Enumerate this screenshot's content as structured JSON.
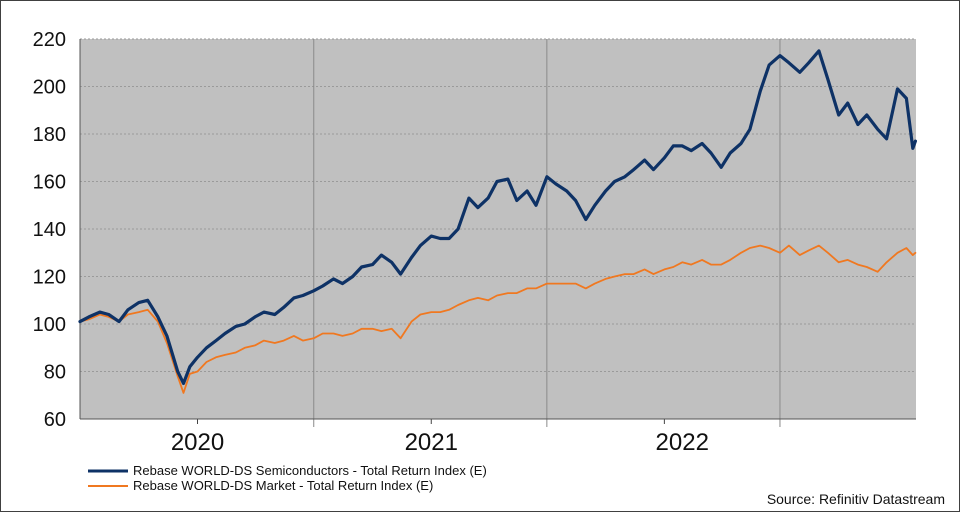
{
  "chart_data": {
    "type": "line",
    "title": "",
    "xlabel": "",
    "ylabel": "",
    "ylim": [
      60,
      220
    ],
    "yticks": [
      60,
      80,
      100,
      120,
      140,
      160,
      180,
      200,
      220
    ],
    "xticks": [
      "2020",
      "2021",
      "2022"
    ],
    "grid": true,
    "legend_position": "bottom-left",
    "source": "Source: Refinitiv Datastream",
    "colors": {
      "plot_background": "#c0c0c0",
      "semis": "#0e3266",
      "market": "#f07820"
    },
    "series": [
      {
        "name": "Rebase WORLD-DS Semiconductors - Total Return Index (E)",
        "color": "#0e3266",
        "points": [
          [
            "2019-08-01",
            101
          ],
          [
            "2019-08-15",
            103
          ],
          [
            "2019-09-01",
            105
          ],
          [
            "2019-09-15",
            104
          ],
          [
            "2019-10-01",
            101
          ],
          [
            "2019-10-15",
            106
          ],
          [
            "2019-11-01",
            109
          ],
          [
            "2019-11-15",
            110
          ],
          [
            "2019-12-01",
            103
          ],
          [
            "2019-12-15",
            95
          ],
          [
            "2020-01-01",
            80
          ],
          [
            "2020-01-10",
            75
          ],
          [
            "2020-01-20",
            82
          ],
          [
            "2020-02-01",
            86
          ],
          [
            "2020-02-15",
            90
          ],
          [
            "2020-03-01",
            93
          ],
          [
            "2020-03-15",
            96
          ],
          [
            "2020-04-01",
            99
          ],
          [
            "2020-04-15",
            100
          ],
          [
            "2020-05-01",
            103
          ],
          [
            "2020-05-15",
            105
          ],
          [
            "2020-06-01",
            104
          ],
          [
            "2020-06-15",
            107
          ],
          [
            "2020-07-01",
            111
          ],
          [
            "2020-07-15",
            112
          ],
          [
            "2020-08-01",
            114
          ],
          [
            "2020-08-15",
            116
          ],
          [
            "2020-09-01",
            119
          ],
          [
            "2020-09-15",
            117
          ],
          [
            "2020-10-01",
            120
          ],
          [
            "2020-10-15",
            124
          ],
          [
            "2020-11-01",
            125
          ],
          [
            "2020-11-15",
            129
          ],
          [
            "2020-12-01",
            126
          ],
          [
            "2020-12-15",
            121
          ],
          [
            "2021-01-01",
            128
          ],
          [
            "2021-01-15",
            133
          ],
          [
            "2021-02-01",
            137
          ],
          [
            "2021-02-15",
            136
          ],
          [
            "2021-03-01",
            136
          ],
          [
            "2021-03-15",
            140
          ],
          [
            "2021-04-01",
            153
          ],
          [
            "2021-04-15",
            149
          ],
          [
            "2021-05-01",
            153
          ],
          [
            "2021-05-15",
            160
          ],
          [
            "2021-06-01",
            161
          ],
          [
            "2021-06-15",
            152
          ],
          [
            "2021-07-01",
            156
          ],
          [
            "2021-07-15",
            150
          ],
          [
            "2021-08-01",
            162
          ],
          [
            "2021-08-15",
            159
          ],
          [
            "2021-09-01",
            156
          ],
          [
            "2021-09-15",
            152
          ],
          [
            "2021-10-01",
            144
          ],
          [
            "2021-10-15",
            150
          ],
          [
            "2021-11-01",
            156
          ],
          [
            "2021-11-15",
            160
          ],
          [
            "2021-12-01",
            162
          ],
          [
            "2021-12-15",
            165
          ],
          [
            "2022-01-01",
            169
          ],
          [
            "2022-01-15",
            165
          ],
          [
            "2022-02-01",
            170
          ],
          [
            "2022-02-15",
            175
          ],
          [
            "2022-03-01",
            175
          ],
          [
            "2022-03-15",
            173
          ],
          [
            "2022-04-01",
            176
          ],
          [
            "2022-04-15",
            172
          ],
          [
            "2022-05-01",
            166
          ],
          [
            "2022-05-15",
            172
          ],
          [
            "2022-06-01",
            176
          ],
          [
            "2022-06-15",
            182
          ],
          [
            "2022-07-01",
            198
          ],
          [
            "2022-07-15",
            209
          ],
          [
            "2022-08-01",
            213
          ],
          [
            "2022-08-15",
            210
          ],
          [
            "2022-09-01",
            206
          ],
          [
            "2022-09-15",
            210
          ],
          [
            "2022-10-01",
            215
          ],
          [
            "2022-10-15",
            203
          ],
          [
            "2022-11-01",
            188
          ],
          [
            "2022-11-15",
            193
          ],
          [
            "2022-12-01",
            184
          ],
          [
            "2022-12-15",
            188
          ],
          [
            "2023-01-01",
            182
          ],
          [
            "2023-01-15",
            178
          ],
          [
            "2023-02-01",
            199
          ],
          [
            "2023-02-15",
            195
          ],
          [
            "2023-02-25",
            174
          ],
          [
            "2023-03-01",
            177
          ]
        ]
      },
      {
        "name": "Rebase WORLD-DS Market - Total Return Index (E)",
        "color": "#f07820",
        "points": [
          [
            "2019-08-01",
            101
          ],
          [
            "2019-08-15",
            102
          ],
          [
            "2019-09-01",
            104
          ],
          [
            "2019-09-15",
            103
          ],
          [
            "2019-10-01",
            101
          ],
          [
            "2019-10-15",
            104
          ],
          [
            "2019-11-01",
            105
          ],
          [
            "2019-11-15",
            106
          ],
          [
            "2019-12-01",
            101
          ],
          [
            "2019-12-15",
            92
          ],
          [
            "2020-01-01",
            78
          ],
          [
            "2020-01-10",
            71
          ],
          [
            "2020-01-20",
            79
          ],
          [
            "2020-02-01",
            80
          ],
          [
            "2020-02-15",
            84
          ],
          [
            "2020-03-01",
            86
          ],
          [
            "2020-03-15",
            87
          ],
          [
            "2020-04-01",
            88
          ],
          [
            "2020-04-15",
            90
          ],
          [
            "2020-05-01",
            91
          ],
          [
            "2020-05-15",
            93
          ],
          [
            "2020-06-01",
            92
          ],
          [
            "2020-06-15",
            93
          ],
          [
            "2020-07-01",
            95
          ],
          [
            "2020-07-15",
            93
          ],
          [
            "2020-08-01",
            94
          ],
          [
            "2020-08-15",
            96
          ],
          [
            "2020-09-01",
            96
          ],
          [
            "2020-09-15",
            95
          ],
          [
            "2020-10-01",
            96
          ],
          [
            "2020-10-15",
            98
          ],
          [
            "2020-11-01",
            98
          ],
          [
            "2020-11-15",
            97
          ],
          [
            "2020-12-01",
            98
          ],
          [
            "2020-12-15",
            94
          ],
          [
            "2021-01-01",
            101
          ],
          [
            "2021-01-15",
            104
          ],
          [
            "2021-02-01",
            105
          ],
          [
            "2021-02-15",
            105
          ],
          [
            "2021-03-01",
            106
          ],
          [
            "2021-03-15",
            108
          ],
          [
            "2021-04-01",
            110
          ],
          [
            "2021-04-15",
            111
          ],
          [
            "2021-05-01",
            110
          ],
          [
            "2021-05-15",
            112
          ],
          [
            "2021-06-01",
            113
          ],
          [
            "2021-06-15",
            113
          ],
          [
            "2021-07-01",
            115
          ],
          [
            "2021-07-15",
            115
          ],
          [
            "2021-08-01",
            117
          ],
          [
            "2021-08-15",
            117
          ],
          [
            "2021-09-01",
            117
          ],
          [
            "2021-09-15",
            117
          ],
          [
            "2021-10-01",
            115
          ],
          [
            "2021-10-15",
            117
          ],
          [
            "2021-11-01",
            119
          ],
          [
            "2021-11-15",
            120
          ],
          [
            "2021-12-01",
            121
          ],
          [
            "2021-12-15",
            121
          ],
          [
            "2022-01-01",
            123
          ],
          [
            "2022-01-15",
            121
          ],
          [
            "2022-02-01",
            123
          ],
          [
            "2022-02-15",
            124
          ],
          [
            "2022-03-01",
            126
          ],
          [
            "2022-03-15",
            125
          ],
          [
            "2022-04-01",
            127
          ],
          [
            "2022-04-15",
            125
          ],
          [
            "2022-05-01",
            125
          ],
          [
            "2022-05-15",
            127
          ],
          [
            "2022-06-01",
            130
          ],
          [
            "2022-06-15",
            132
          ],
          [
            "2022-07-01",
            133
          ],
          [
            "2022-07-15",
            132
          ],
          [
            "2022-08-01",
            130
          ],
          [
            "2022-08-15",
            133
          ],
          [
            "2022-09-01",
            129
          ],
          [
            "2022-09-15",
            131
          ],
          [
            "2022-10-01",
            133
          ],
          [
            "2022-10-15",
            130
          ],
          [
            "2022-11-01",
            126
          ],
          [
            "2022-11-15",
            127
          ],
          [
            "2022-12-01",
            125
          ],
          [
            "2022-12-15",
            124
          ],
          [
            "2023-01-01",
            122
          ],
          [
            "2023-01-15",
            126
          ],
          [
            "2023-02-01",
            130
          ],
          [
            "2023-02-15",
            132
          ],
          [
            "2023-02-25",
            129
          ],
          [
            "2023-03-01",
            130
          ]
        ]
      }
    ]
  }
}
